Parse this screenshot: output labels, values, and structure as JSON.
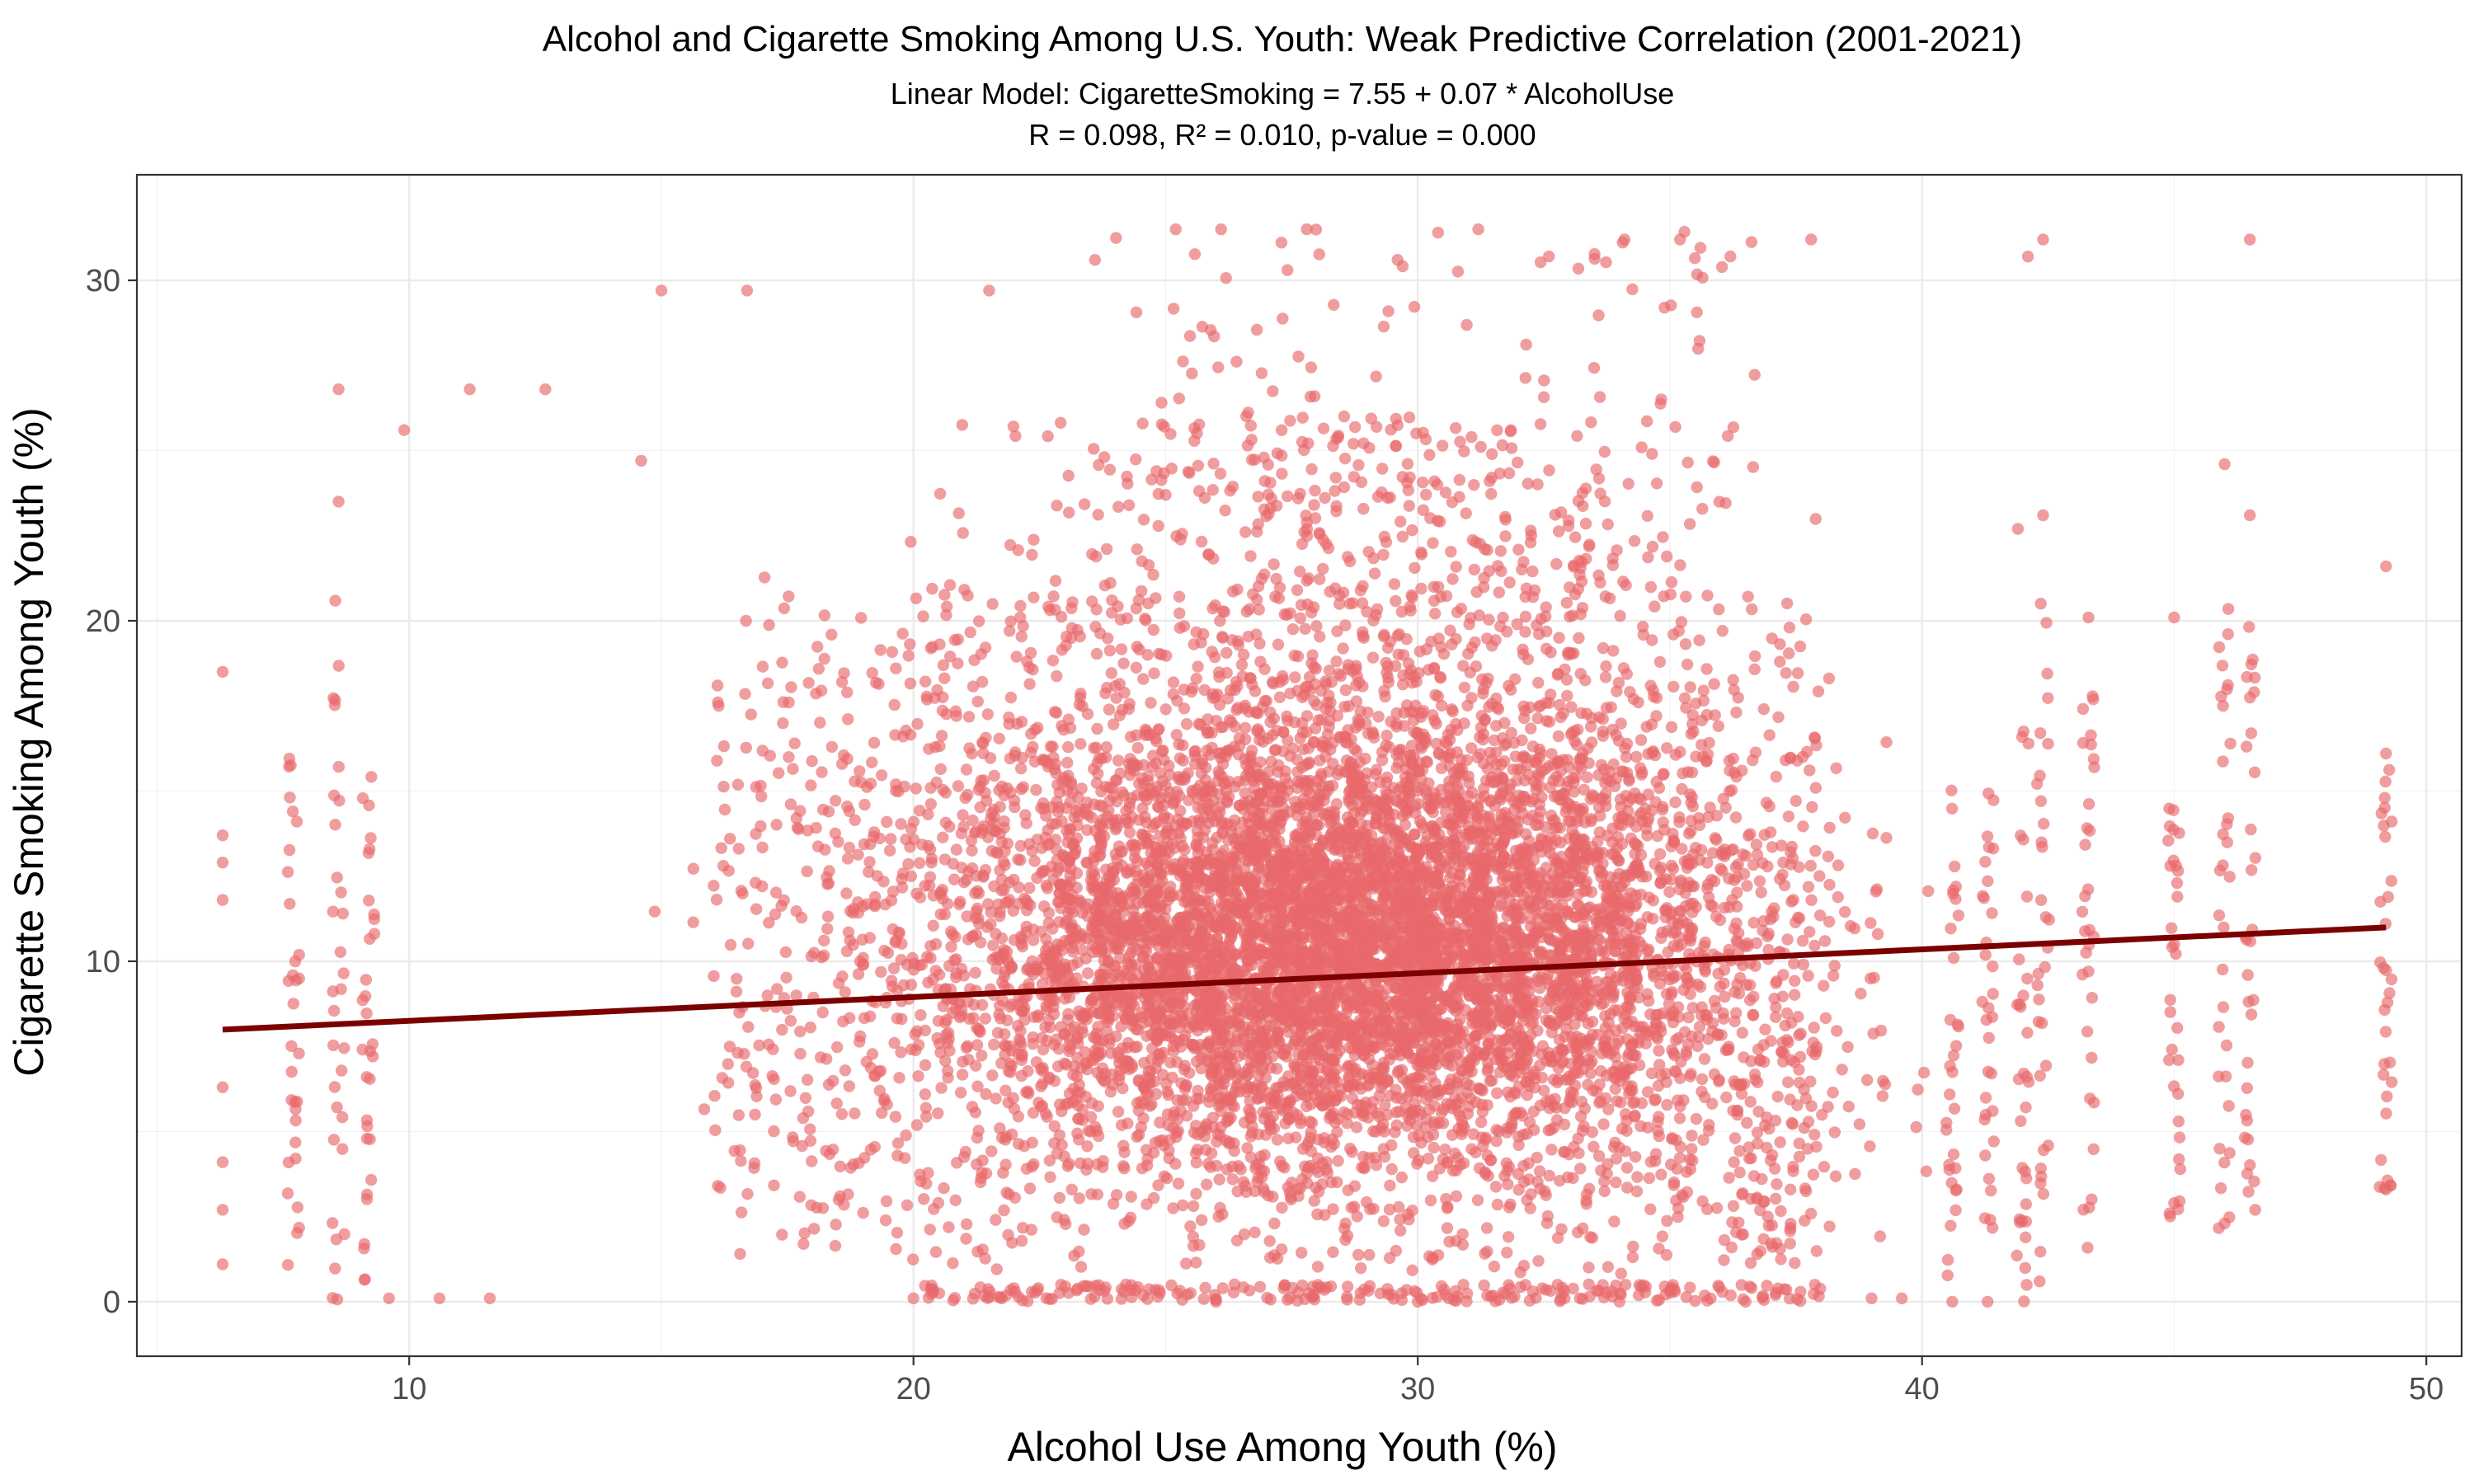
{
  "chart_data": {
    "type": "scatter",
    "title": "Alcohol and Cigarette Smoking Among U.S. Youth: Weak Predictive Correlation (2001-2021)",
    "subtitle_lines": [
      "Linear Model: CigaretteSmoking = 7.55 + 0.07 * AlcoholUse",
      "R = 0.098, R² = 0.010, p-value = 0.000"
    ],
    "xlabel": "Alcohol Use Among Youth (%)",
    "ylabel": "Cigarette Smoking Among Youth (%)",
    "xlim": [
      4.6,
      50.7
    ],
    "ylim": [
      -1.6,
      33.1
    ],
    "x_ticks": [
      10,
      20,
      30,
      40,
      50
    ],
    "y_ticks": [
      0,
      10,
      20,
      30
    ],
    "grid": true,
    "point_color": "#E8696B",
    "point_opacity": 0.65,
    "regression_line": {
      "intercept": 7.55,
      "slope": 0.07,
      "x_range": [
        6.3,
        49.2
      ],
      "color": "#7B0000"
    },
    "representative_points": [
      {
        "x": 6.3,
        "y": 18.5
      },
      {
        "x": 6.3,
        "y": 13.7
      },
      {
        "x": 6.3,
        "y": 12.9
      },
      {
        "x": 6.3,
        "y": 11.8
      },
      {
        "x": 6.3,
        "y": 6.3
      },
      {
        "x": 6.3,
        "y": 4.1
      },
      {
        "x": 6.3,
        "y": 2.7
      },
      {
        "x": 6.3,
        "y": 1.1
      },
      {
        "x": 8.6,
        "y": 26.8
      },
      {
        "x": 8.6,
        "y": 23.5
      },
      {
        "x": 9.9,
        "y": 25.6
      },
      {
        "x": 11.2,
        "y": 26.8
      },
      {
        "x": 12.7,
        "y": 26.8
      },
      {
        "x": 14.6,
        "y": 24.7
      },
      {
        "x": 15.0,
        "y": 29.7
      },
      {
        "x": 16.7,
        "y": 29.7
      },
      {
        "x": 21.5,
        "y": 29.7
      },
      {
        "x": 23.6,
        "y": 30.6
      },
      {
        "x": 25.2,
        "y": 31.5
      },
      {
        "x": 26.1,
        "y": 31.5
      },
      {
        "x": 27.8,
        "y": 31.5
      },
      {
        "x": 29.6,
        "y": 30.6
      },
      {
        "x": 31.2,
        "y": 31.5
      },
      {
        "x": 32.6,
        "y": 30.7
      },
      {
        "x": 34.1,
        "y": 31.2
      },
      {
        "x": 35.2,
        "y": 31.2
      },
      {
        "x": 36.2,
        "y": 30.7
      },
      {
        "x": 37.8,
        "y": 31.2
      },
      {
        "x": 42.1,
        "y": 30.7
      },
      {
        "x": 42.4,
        "y": 31.2
      },
      {
        "x": 46.5,
        "y": 31.2
      },
      {
        "x": 41.9,
        "y": 22.7
      },
      {
        "x": 42.4,
        "y": 23.1
      },
      {
        "x": 46.0,
        "y": 24.6
      },
      {
        "x": 46.5,
        "y": 23.1
      },
      {
        "x": 49.2,
        "y": 21.6
      },
      {
        "x": 49.2,
        "y": 16.1
      },
      {
        "x": 49.2,
        "y": 3.3
      },
      {
        "x": 45.0,
        "y": 20.1
      },
      {
        "x": 43.3,
        "y": 20.1
      },
      {
        "x": 40.6,
        "y": 0.0
      },
      {
        "x": 41.3,
        "y": 0.0
      },
      {
        "x": 45.0,
        "y": 2.9
      },
      {
        "x": 46.0,
        "y": 2.3
      },
      {
        "x": 9.6,
        "y": 0.1
      },
      {
        "x": 10.6,
        "y": 0.1
      },
      {
        "x": 11.6,
        "y": 0.1
      },
      {
        "x": 20.0,
        "y": 0.1
      },
      {
        "x": 26.0,
        "y": 0.0
      },
      {
        "x": 30.0,
        "y": 0.0
      },
      {
        "x": 34.0,
        "y": 0.0
      },
      {
        "x": 36.5,
        "y": 0.0
      },
      {
        "x": 39.0,
        "y": 0.1
      },
      {
        "x": 39.6,
        "y": 0.1
      }
    ]
  }
}
